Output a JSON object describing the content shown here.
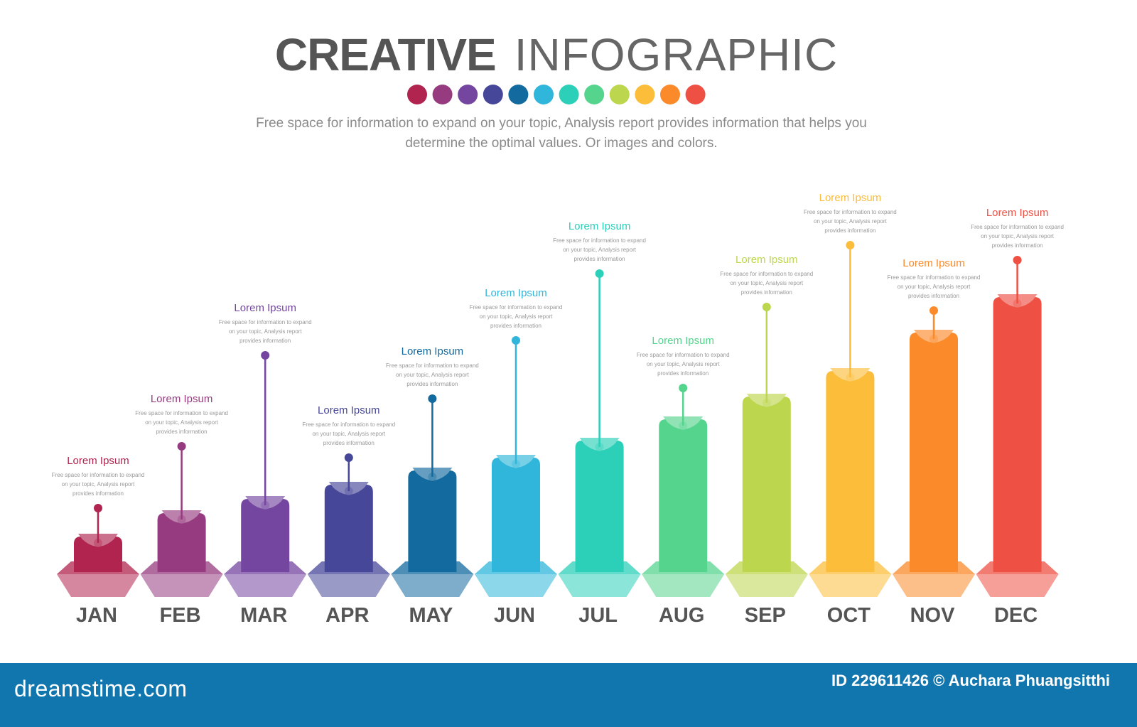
{
  "header": {
    "title_bold": "CREATIVE",
    "title_light": "INFOGRAPHIC",
    "subtitle_line1": "Free space for information to expand on your topic, Analysis report provides information that helps you",
    "subtitle_line2": "determine the optimal values. Or images and colors."
  },
  "palette": [
    "#b0244f",
    "#963b7f",
    "#7446a0",
    "#47479a",
    "#126a9e",
    "#2fb6da",
    "#2ccfb8",
    "#55d48d",
    "#bcd64d",
    "#fcbd3b",
    "#fb8a2b",
    "#ee5043"
  ],
  "chart_data": {
    "type": "bar",
    "title": "CREATIVE INFOGRAPHIC",
    "categories": [
      "JAN",
      "FEB",
      "MAR",
      "APR",
      "MAY",
      "JUN",
      "JUL",
      "AUG",
      "SEP",
      "OCT",
      "NOV",
      "DEC"
    ],
    "values": [
      50,
      83,
      103,
      123,
      143,
      161,
      185,
      215,
      247,
      283,
      337,
      387
    ],
    "value_units": "relative bar height (no axis shown)",
    "colors": [
      "#b0244f",
      "#963b7f",
      "#7446a0",
      "#47479a",
      "#126a9e",
      "#2fb6da",
      "#2ccfb8",
      "#55d48d",
      "#bcd64d",
      "#fcbd3b",
      "#fb8a2b",
      "#ee5043"
    ],
    "annotations": [
      {
        "title": "Lorem Ipsum",
        "lines": [
          "Free space for information to expand",
          "on your topic, Analysis report",
          "provides information"
        ]
      },
      {
        "title": "Lorem Ipsum",
        "lines": [
          "Free space for information to expand",
          "on your topic, Analysis report",
          "provides information"
        ]
      },
      {
        "title": "Lorem Ipsum",
        "lines": [
          "Free space for information to expand",
          "on your topic, Analysis report",
          "provides information"
        ]
      },
      {
        "title": "Lorem Ipsum",
        "lines": [
          "Free space for information to expand",
          "on your topic, Analysis report",
          "provides information"
        ]
      },
      {
        "title": "Lorem Ipsum",
        "lines": [
          "Free space for information to expand",
          "on your topic, Analysis report",
          "provides information"
        ]
      },
      {
        "title": "Lorem Ipsum",
        "lines": [
          "Free space for information to expand",
          "on your topic, Analysis report",
          "provides information"
        ]
      },
      {
        "title": "Lorem Ipsum",
        "lines": [
          "Free space for information to expand",
          "on your topic, Analysis report",
          "provides information"
        ]
      },
      {
        "title": "Lorem Ipsum",
        "lines": [
          "Free space for information to expand",
          "on your topic, Analysis report",
          "provides information"
        ]
      },
      {
        "title": "Lorem Ipsum",
        "lines": [
          "Free space for information to expand",
          "on your topic, Analysis report",
          "provides information"
        ]
      },
      {
        "title": "Lorem Ipsum",
        "lines": [
          "Free space for information to expand",
          "on your topic, Analysis report",
          "provides information"
        ]
      },
      {
        "title": "Lorem Ipsum",
        "lines": [
          "Free space for information to expand",
          "on your topic, Analysis report",
          "provides information"
        ]
      },
      {
        "title": "Lorem Ipsum",
        "lines": [
          "Free space for information to expand",
          "on your topic, Analysis report",
          "provides information"
        ]
      }
    ],
    "xlabel": "",
    "ylabel": "",
    "grid": false,
    "legend": "none"
  },
  "footer": {
    "logo": "dreamstime.com",
    "credit": "ID 229611426 © Auchara Phuangsitthi"
  }
}
